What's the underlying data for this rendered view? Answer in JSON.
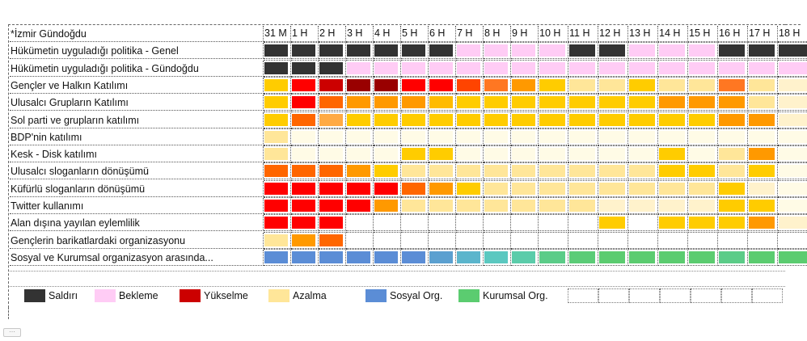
{
  "sheet": {
    "corner_label": "*İzmir Gündoğdu",
    "columns": [
      "31 M",
      "1 H",
      "2 H",
      "3 H",
      "4 H",
      "5 H",
      "6 H",
      "7 H",
      "8 H",
      "9 H",
      "10 H",
      "11 H",
      "12 H",
      "13 H",
      "14 H",
      "15 H",
      "16 H",
      "17 H",
      "18 H"
    ],
    "rows": [
      {
        "label": "Hükümetin uyguladığı politika - Genel",
        "cells": [
          "#333333",
          "#333333",
          "#333333",
          "#333333",
          "#333333",
          "#333333",
          "#333333",
          "#ffccf5",
          "#ffccf5",
          "#ffccf5",
          "#ffccf5",
          "#333333",
          "#333333",
          "#ffccf5",
          "#ffccf5",
          "#ffccf5",
          "#333333",
          "#333333",
          "#333333"
        ]
      },
      {
        "label": "Hükümetin uyguladığı politika - Gündoğdu",
        "cells": [
          "#333333",
          "#333333",
          "#333333",
          "#ffccf5",
          "#ffccf5",
          "#ffccf5",
          "#ffccf5",
          "#ffccf5",
          "#ffccf5",
          "#ffccf5",
          "#ffccf5",
          "#ffccf5",
          "#ffccf5",
          "#ffccf5",
          "#ffccf5",
          "#ffccf5",
          "#ffccf5",
          "#ffccf5",
          "#ffccf5"
        ]
      },
      {
        "label": "Gençler ve Halkın Katılımı",
        "cells": [
          "#ffcc00",
          "#ff0000",
          "#cc0000",
          "#990000",
          "#990000",
          "#ff0000",
          "#ff0000",
          "#ff4400",
          "#ff7722",
          "#ff9900",
          "#ffcc00",
          "#ffe699",
          "#ffe699",
          "#ffcc00",
          "#ffe699",
          "#ffe699",
          "#ff7722",
          "#ffe699",
          "#fff2cc"
        ]
      },
      {
        "label": "Ulusalcı Grupların Katılımı",
        "cells": [
          "#ffcc00",
          "#ff0000",
          "#ff6600",
          "#ff9900",
          "#ff9900",
          "#ff9900",
          "#ffbb00",
          "#ffcc00",
          "#ffcc00",
          "#ffcc00",
          "#ffcc00",
          "#ffcc00",
          "#ffcc00",
          "#ffcc00",
          "#ff9900",
          "#ff9900",
          "#ff9900",
          "#ffe699",
          "#fff2cc"
        ]
      },
      {
        "label": "Sol parti ve grupların katılımı",
        "cells": [
          "#ffcc00",
          "#ff6600",
          "#ffaa44",
          "#ffcc00",
          "#ffcc00",
          "#ffcc00",
          "#ffcc00",
          "#ffcc00",
          "#ffcc00",
          "#ffcc00",
          "#ffcc00",
          "#ffcc00",
          "#ffcc00",
          "#ffcc00",
          "#ffcc00",
          "#ffcc00",
          "#ff9900",
          "#ff9900",
          "#fff2cc"
        ]
      },
      {
        "label": "BDP'nin katılımı",
        "cells": [
          "#ffe699",
          "#fffbe6",
          "#fffbe6",
          "#fffbe6",
          "#fffbe6",
          "#fffbe6",
          "#fffbe6",
          "#fffbe6",
          "#fffbe6",
          "#fffbe6",
          "#fffbe6",
          "#fffbe6",
          "#fffbe6",
          "#fffbe6",
          "#fffbe6",
          "#fffbe6",
          "#fffbe6",
          "#fffbe6",
          "#fffbe6"
        ]
      },
      {
        "label": "Kesk - Disk katılımı",
        "cells": [
          "#ffe699",
          "#fffbe6",
          "#fffbe6",
          "#fffbe6",
          "#fffbe6",
          "#ffcc00",
          "#ffcc00",
          "#fffbe6",
          "#fffbe6",
          "#fffbe6",
          "#fffbe6",
          "#fffbe6",
          "#fffbe6",
          "#fffbe6",
          "#ffcc00",
          "#fffbe6",
          "#ffe699",
          "#ff9900",
          "#fffbe6"
        ]
      },
      {
        "label": "Ulusalcı sloganların dönüşümü",
        "cells": [
          "#ff6600",
          "#ff6600",
          "#ff6600",
          "#ff9900",
          "#ffcc00",
          "#ffe699",
          "#ffe699",
          "#ffe699",
          "#ffe699",
          "#ffe699",
          "#ffe699",
          "#ffe699",
          "#ffe699",
          "#ffe699",
          "#ffcc00",
          "#ffcc00",
          "#ffe699",
          "#ffcc00",
          "#fffbe6"
        ]
      },
      {
        "label": "Küfürlü sloganların dönüşümü",
        "cells": [
          "#ff0000",
          "#ff0000",
          "#ff0000",
          "#ff0000",
          "#ff0000",
          "#ff6600",
          "#ff9900",
          "#ffcc00",
          "#ffe699",
          "#ffe699",
          "#ffe699",
          "#ffe699",
          "#ffe699",
          "#ffe699",
          "#ffe699",
          "#ffe699",
          "#ffcc00",
          "#fff2cc",
          "#fffbe6"
        ]
      },
      {
        "label": "Twitter kullanımı",
        "cells": [
          "#ff0000",
          "#ff0000",
          "#ff0000",
          "#ff0000",
          "#ff9900",
          "#ffe699",
          "#ffe699",
          "#ffe699",
          "#ffe699",
          "#ffe699",
          "#ffe699",
          "#ffe699",
          "#fff2cc",
          "#fff2cc",
          "#fff2cc",
          "#fff2cc",
          "#ffcc00",
          "#ffcc00",
          "#fffbe6"
        ]
      },
      {
        "label": "Alan dışına yayılan eylemlilik",
        "cells": [
          "#ff0000",
          "#ff0000",
          "#ff0000",
          "#ffffff",
          "#ffffff",
          "#ffffff",
          "#ffffff",
          "#ffffff",
          "#ffffff",
          "#ffffff",
          "#ffffff",
          "#ffffff",
          "#ffcc00",
          "#ffffff",
          "#ffcc00",
          "#ffcc00",
          "#ffcc00",
          "#ff9900",
          "#fff2cc"
        ]
      },
      {
        "label": "Gençlerin barikatlardaki organizasyonu",
        "cells": [
          "#ffe699",
          "#ff9900",
          "#ff6600",
          "#ffffff",
          "#ffffff",
          "#ffffff",
          "#ffffff",
          "#ffffff",
          "#ffffff",
          "#ffffff",
          "#ffffff",
          "#ffffff",
          "#ffffff",
          "#ffffff",
          "#ffffff",
          "#ffffff",
          "#ffffff",
          "#ffffff",
          "#ffffff"
        ]
      },
      {
        "label": "Sosyal ve Kurumsal organizasyon arasında...",
        "cells": [
          "#5b8dd6",
          "#5b8dd6",
          "#5b8dd6",
          "#5b8dd6",
          "#5b8dd6",
          "#5b8dd6",
          "#5ba0d0",
          "#5bb5cc",
          "#5bc8c0",
          "#5bccaa",
          "#5bcc88",
          "#5bcc77",
          "#5bcc70",
          "#5bcc70",
          "#5bcc70",
          "#5bcc70",
          "#5bcc88",
          "#5bcc70",
          "#5bcc70"
        ]
      }
    ]
  },
  "legend": [
    {
      "label": "Saldırı",
      "color": "#333333"
    },
    {
      "label": "Bekleme",
      "color": "#ffccf5"
    },
    {
      "label": "Yükselme",
      "color": "#cc0000"
    },
    {
      "label": "Azalma",
      "color": "#ffe699"
    },
    {
      "label": "Sosyal Org.",
      "color": "#5b8dd6"
    },
    {
      "label": "Kurumsal Org.",
      "color": "#5bcc70"
    }
  ],
  "toolbar": {
    "more_label": "⋯"
  }
}
